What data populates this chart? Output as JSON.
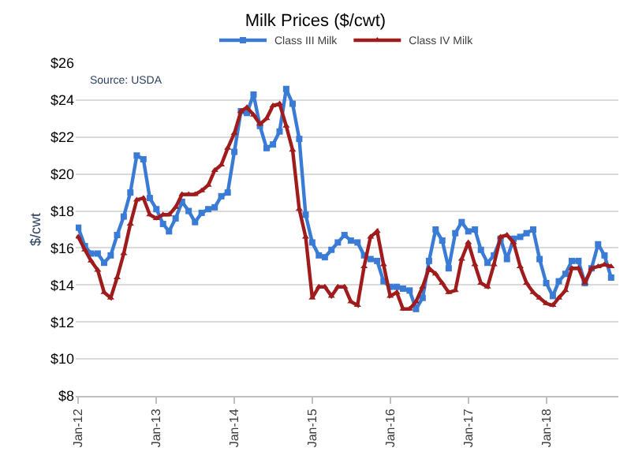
{
  "chart_data": {
    "type": "line",
    "title": "Milk Prices ($/cwt)",
    "ylabel": "$/cwt",
    "annotations": [
      "Source: USDA"
    ],
    "x": [
      "2012-01",
      "2012-02",
      "2012-03",
      "2012-04",
      "2012-05",
      "2012-06",
      "2012-07",
      "2012-08",
      "2012-09",
      "2012-10",
      "2012-11",
      "2012-12",
      "2013-01",
      "2013-02",
      "2013-03",
      "2013-04",
      "2013-05",
      "2013-06",
      "2013-07",
      "2013-08",
      "2013-09",
      "2013-10",
      "2013-11",
      "2013-12",
      "2014-01",
      "2014-02",
      "2014-03",
      "2014-04",
      "2014-05",
      "2014-06",
      "2014-07",
      "2014-08",
      "2014-09",
      "2014-10",
      "2014-11",
      "2014-12",
      "2015-01",
      "2015-02",
      "2015-03",
      "2015-04",
      "2015-05",
      "2015-06",
      "2015-07",
      "2015-08",
      "2015-09",
      "2015-10",
      "2015-11",
      "2015-12",
      "2016-01",
      "2016-02",
      "2016-03",
      "2016-04",
      "2016-05",
      "2016-06",
      "2016-07",
      "2016-08",
      "2016-09",
      "2016-10",
      "2016-11",
      "2016-12",
      "2017-01",
      "2017-02",
      "2017-03",
      "2017-04",
      "2017-05",
      "2017-06",
      "2017-07",
      "2017-08",
      "2017-09",
      "2017-10",
      "2017-11",
      "2017-12",
      "2018-01",
      "2018-02",
      "2018-03",
      "2018-04",
      "2018-05",
      "2018-06",
      "2018-07",
      "2018-08",
      "2018-09",
      "2018-10",
      "2018-11"
    ],
    "series": [
      {
        "name": "Class III Milk",
        "color": "#3a7bd5",
        "marker": "square",
        "values": [
          17.1,
          16.1,
          15.7,
          15.7,
          15.2,
          15.6,
          16.7,
          17.7,
          19.0,
          21.0,
          20.8,
          18.7,
          18.1,
          17.3,
          16.9,
          17.6,
          18.5,
          18.0,
          17.4,
          17.9,
          18.1,
          18.2,
          18.8,
          19.0,
          21.2,
          23.4,
          23.3,
          24.3,
          22.6,
          21.4,
          21.6,
          22.3,
          24.6,
          23.8,
          21.9,
          17.8,
          16.3,
          15.6,
          15.5,
          15.9,
          16.3,
          16.7,
          16.4,
          16.3,
          15.6,
          15.4,
          15.3,
          14.2,
          13.9,
          13.9,
          13.8,
          13.7,
          12.7,
          13.3,
          15.3,
          17.0,
          16.4,
          14.9,
          16.8,
          17.4,
          16.9,
          17.0,
          15.9,
          15.2,
          15.6,
          16.5,
          15.4,
          16.5,
          16.6,
          16.8,
          17.0,
          15.4,
          14.1,
          13.4,
          14.2,
          14.6,
          15.3,
          15.3,
          14.1,
          14.9,
          16.2,
          15.6,
          14.4
        ]
      },
      {
        "name": "Class IV Milk",
        "color": "#a01c1c",
        "marker": "triangle",
        "values": [
          16.6,
          15.9,
          15.3,
          14.8,
          13.6,
          13.3,
          14.4,
          15.7,
          17.3,
          18.6,
          18.7,
          17.8,
          17.6,
          17.8,
          17.8,
          18.2,
          18.9,
          18.9,
          18.9,
          19.1,
          19.4,
          20.2,
          20.5,
          21.4,
          22.2,
          23.4,
          23.6,
          23.2,
          22.7,
          23.0,
          23.7,
          23.8,
          22.6,
          21.3,
          18.1,
          16.6,
          13.3,
          13.9,
          13.9,
          13.4,
          13.9,
          13.9,
          13.1,
          12.9,
          15.0,
          16.6,
          16.9,
          15.1,
          13.4,
          13.6,
          12.7,
          12.7,
          13.1,
          13.9,
          14.9,
          14.6,
          14.1,
          13.6,
          13.7,
          15.4,
          16.3,
          15.1,
          14.1,
          13.9,
          15.1,
          16.6,
          16.7,
          16.3,
          15.0,
          14.1,
          13.6,
          13.3,
          13.0,
          12.9,
          13.3,
          13.7,
          14.9,
          14.9,
          14.1,
          14.9,
          15.0,
          15.1,
          15.0
        ]
      }
    ],
    "xlim": [
      "2011-12-20",
      "2018-12-05"
    ],
    "xticks": [
      {
        "value": "2012-01",
        "label": "Jan-12"
      },
      {
        "value": "2013-01",
        "label": "Jan-13"
      },
      {
        "value": "2014-01",
        "label": "Jan-14"
      },
      {
        "value": "2015-01",
        "label": "Jan-15"
      },
      {
        "value": "2016-01",
        "label": "Jan-16"
      },
      {
        "value": "2017-01",
        "label": "Jan-17"
      },
      {
        "value": "2018-01",
        "label": "Jan-18"
      }
    ],
    "ylim": [
      8,
      26
    ],
    "yticks": [
      {
        "value": 8,
        "label": "$8"
      },
      {
        "value": 10,
        "label": "$10"
      },
      {
        "value": 12,
        "label": "$12"
      },
      {
        "value": 14,
        "label": "$14"
      },
      {
        "value": 16,
        "label": "$16"
      },
      {
        "value": 18,
        "label": "$18"
      },
      {
        "value": 20,
        "label": "$20"
      },
      {
        "value": 22,
        "label": "$22"
      },
      {
        "value": 24,
        "label": "$24"
      },
      {
        "value": 26,
        "label": "$26"
      }
    ],
    "grid": "y",
    "legend": "top",
    "line_style": "solid"
  }
}
